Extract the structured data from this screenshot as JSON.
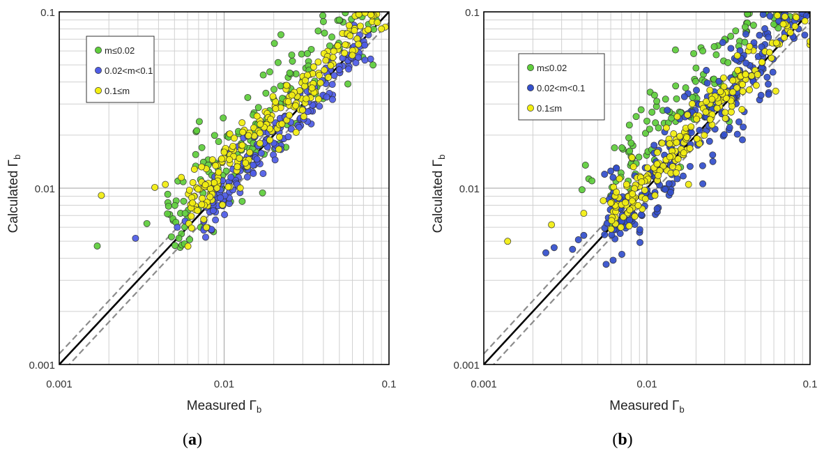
{
  "chart_data": [
    {
      "type": "scatter",
      "panel_label": "a",
      "xlabel": "Measured Γb",
      "ylabel": "Calculated Γb",
      "xlabel_text": "Measured Γ",
      "ylabel_text": "Calculated Γ",
      "label_subscript": "b",
      "x_scale": "log",
      "y_scale": "log",
      "xlim": [
        0.001,
        0.1
      ],
      "ylim": [
        0.001,
        0.1
      ],
      "xticks": [
        "0.001",
        "0.01",
        "0.1"
      ],
      "yticks": [
        "0.001",
        "0.01",
        "0.1"
      ],
      "grid": true,
      "legend_position": "top-left",
      "reference_lines": [
        {
          "name": "1:1 line",
          "style": "solid",
          "color": "#000000",
          "factor": 1.0
        },
        {
          "name": "upper bound",
          "style": "dashed",
          "color": "#8c8c8c",
          "factor": 1.15
        },
        {
          "name": "lower bound",
          "style": "dashed",
          "color": "#8c8c8c",
          "factor": 0.87
        }
      ],
      "series": [
        {
          "name": "m≤0.02",
          "color": "#5fcd3c",
          "seed": 11,
          "points": [
            [
              0.0017,
              0.0047
            ],
            [
              0.0034,
              0.0063
            ],
            [
              0.0046,
              0.0079
            ],
            [
              0.0051,
              0.0064
            ],
            [
              0.0058,
              0.0072
            ],
            [
              0.0072,
              0.006
            ],
            [
              0.008,
              0.0135
            ],
            [
              0.0088,
              0.0112
            ],
            [
              0.0098,
              0.0118
            ],
            [
              0.012,
              0.0155
            ],
            [
              0.016,
              0.023
            ],
            [
              0.02,
              0.032
            ],
            [
              0.025,
              0.045
            ],
            [
              0.032,
              0.058
            ],
            [
              0.04,
              0.088
            ],
            [
              0.05,
              0.09
            ],
            [
              0.06,
              0.078
            ],
            [
              0.075,
              0.085
            ],
            [
              0.08,
              0.05
            ],
            [
              0.015,
              0.026
            ],
            [
              0.022,
              0.038
            ],
            [
              0.045,
              0.072
            ]
          ],
          "cloud": {
            "count": 160,
            "x_range": [
              0.0045,
              0.085
            ],
            "ratio_median": 1.4,
            "ratio_spread": 0.16
          }
        },
        {
          "name": "0.02<m<0.1",
          "color": "#4f5de6",
          "seed": 23,
          "points": [
            [
              0.0029,
              0.0052
            ],
            [
              0.0052,
              0.006
            ],
            [
              0.0058,
              0.0065
            ],
            [
              0.0078,
              0.0078
            ],
            [
              0.0085,
              0.0083
            ],
            [
              0.0095,
              0.0088
            ],
            [
              0.012,
              0.0105
            ],
            [
              0.015,
              0.0135
            ],
            [
              0.02,
              0.018
            ],
            [
              0.03,
              0.028
            ],
            [
              0.05,
              0.047
            ],
            [
              0.075,
              0.074
            ]
          ],
          "cloud": {
            "count": 180,
            "x_range": [
              0.0075,
              0.085
            ],
            "ratio_median": 0.98,
            "ratio_spread": 0.07
          }
        },
        {
          "name": "0.1≤m",
          "color": "#f2ee10",
          "seed": 37,
          "points": [
            [
              0.0018,
              0.0091
            ],
            [
              0.0038,
              0.0101
            ],
            [
              0.0044,
              0.0105
            ],
            [
              0.0055,
              0.0115
            ],
            [
              0.0066,
              0.0128
            ],
            [
              0.0073,
              0.0132
            ],
            [
              0.0085,
              0.0145
            ],
            [
              0.01,
              0.016
            ],
            [
              0.095,
              0.082
            ],
            [
              0.085,
              0.087
            ],
            [
              0.09,
              0.08
            ]
          ],
          "cloud": {
            "count": 200,
            "x_range": [
              0.006,
              0.095
            ],
            "ratio_median": 1.2,
            "ratio_spread": 0.08
          }
        }
      ]
    },
    {
      "type": "scatter",
      "panel_label": "b",
      "xlabel": "Measured Γb",
      "ylabel": "Calculated Γb",
      "xlabel_text": "Measured Γ",
      "ylabel_text": "Calculated Γ",
      "label_subscript": "b",
      "x_scale": "log",
      "y_scale": "log",
      "xlim": [
        0.001,
        0.1
      ],
      "ylim": [
        0.001,
        0.1
      ],
      "xticks": [
        "0.001",
        "0.01",
        "0.1"
      ],
      "yticks": [
        "0.001",
        "0.01",
        "0.1"
      ],
      "grid": true,
      "legend_position": "top-left",
      "reference_lines": [
        {
          "name": "1:1 line",
          "style": "solid",
          "color": "#000000",
          "factor": 1.0
        },
        {
          "name": "upper bound",
          "style": "dashed",
          "color": "#8c8c8c",
          "factor": 1.15
        },
        {
          "name": "lower bound",
          "style": "dashed",
          "color": "#8c8c8c",
          "factor": 0.87
        }
      ],
      "series": [
        {
          "name": "m≤0.02",
          "color": "#5fcd3c",
          "seed": 51,
          "points": [
            [
              0.004,
              0.0098
            ],
            [
              0.0042,
              0.0135
            ],
            [
              0.0044,
              0.0113
            ],
            [
              0.0046,
              0.011
            ],
            [
              0.008,
              0.018
            ],
            [
              0.01,
              0.024
            ],
            [
              0.013,
              0.032
            ],
            [
              0.015,
              0.038
            ],
            [
              0.02,
              0.048
            ],
            [
              0.022,
              0.06
            ],
            [
              0.03,
              0.07
            ],
            [
              0.035,
              0.078
            ],
            [
              0.04,
              0.082
            ],
            [
              0.045,
              0.084
            ],
            [
              0.06,
              0.085
            ]
          ],
          "cloud": {
            "count": 110,
            "x_range": [
              0.006,
              0.08
            ],
            "ratio_median": 1.8,
            "ratio_spread": 0.12
          }
        },
        {
          "name": "0.02<m<0.1",
          "color": "#3450cc",
          "seed": 63,
          "points": [
            [
              0.0024,
              0.0043
            ],
            [
              0.0027,
              0.0046
            ],
            [
              0.0035,
              0.0045
            ],
            [
              0.0038,
              0.0051
            ],
            [
              0.0041,
              0.0054
            ],
            [
              0.0058,
              0.0068
            ],
            [
              0.0064,
              0.0062
            ],
            [
              0.007,
              0.0065
            ],
            [
              0.0055,
              0.012
            ],
            [
              0.006,
              0.0125
            ],
            [
              0.0065,
              0.013
            ],
            [
              0.0062,
              0.0115
            ],
            [
              0.09,
              0.098
            ],
            [
              0.095,
              0.095
            ],
            [
              0.085,
              0.08
            ]
          ],
          "cloud": {
            "count": 240,
            "x_range": [
              0.0055,
              0.098
            ],
            "ratio_median": 1.05,
            "ratio_spread": 0.13
          }
        },
        {
          "name": "0.1≤m",
          "color": "#f2ee10",
          "seed": 77,
          "points": [
            [
              0.0014,
              0.005
            ],
            [
              0.0026,
              0.0062
            ],
            [
              0.0041,
              0.0072
            ],
            [
              0.0054,
              0.0085
            ],
            [
              0.0065,
              0.0095
            ],
            [
              0.0075,
              0.0105
            ],
            [
              0.018,
              0.0105
            ],
            [
              0.1,
              0.065
            ],
            [
              0.1,
              0.068
            ]
          ],
          "cloud": {
            "count": 200,
            "x_range": [
              0.006,
              0.1
            ],
            "ratio_median": 1.1,
            "ratio_spread": 0.08
          }
        }
      ]
    }
  ]
}
